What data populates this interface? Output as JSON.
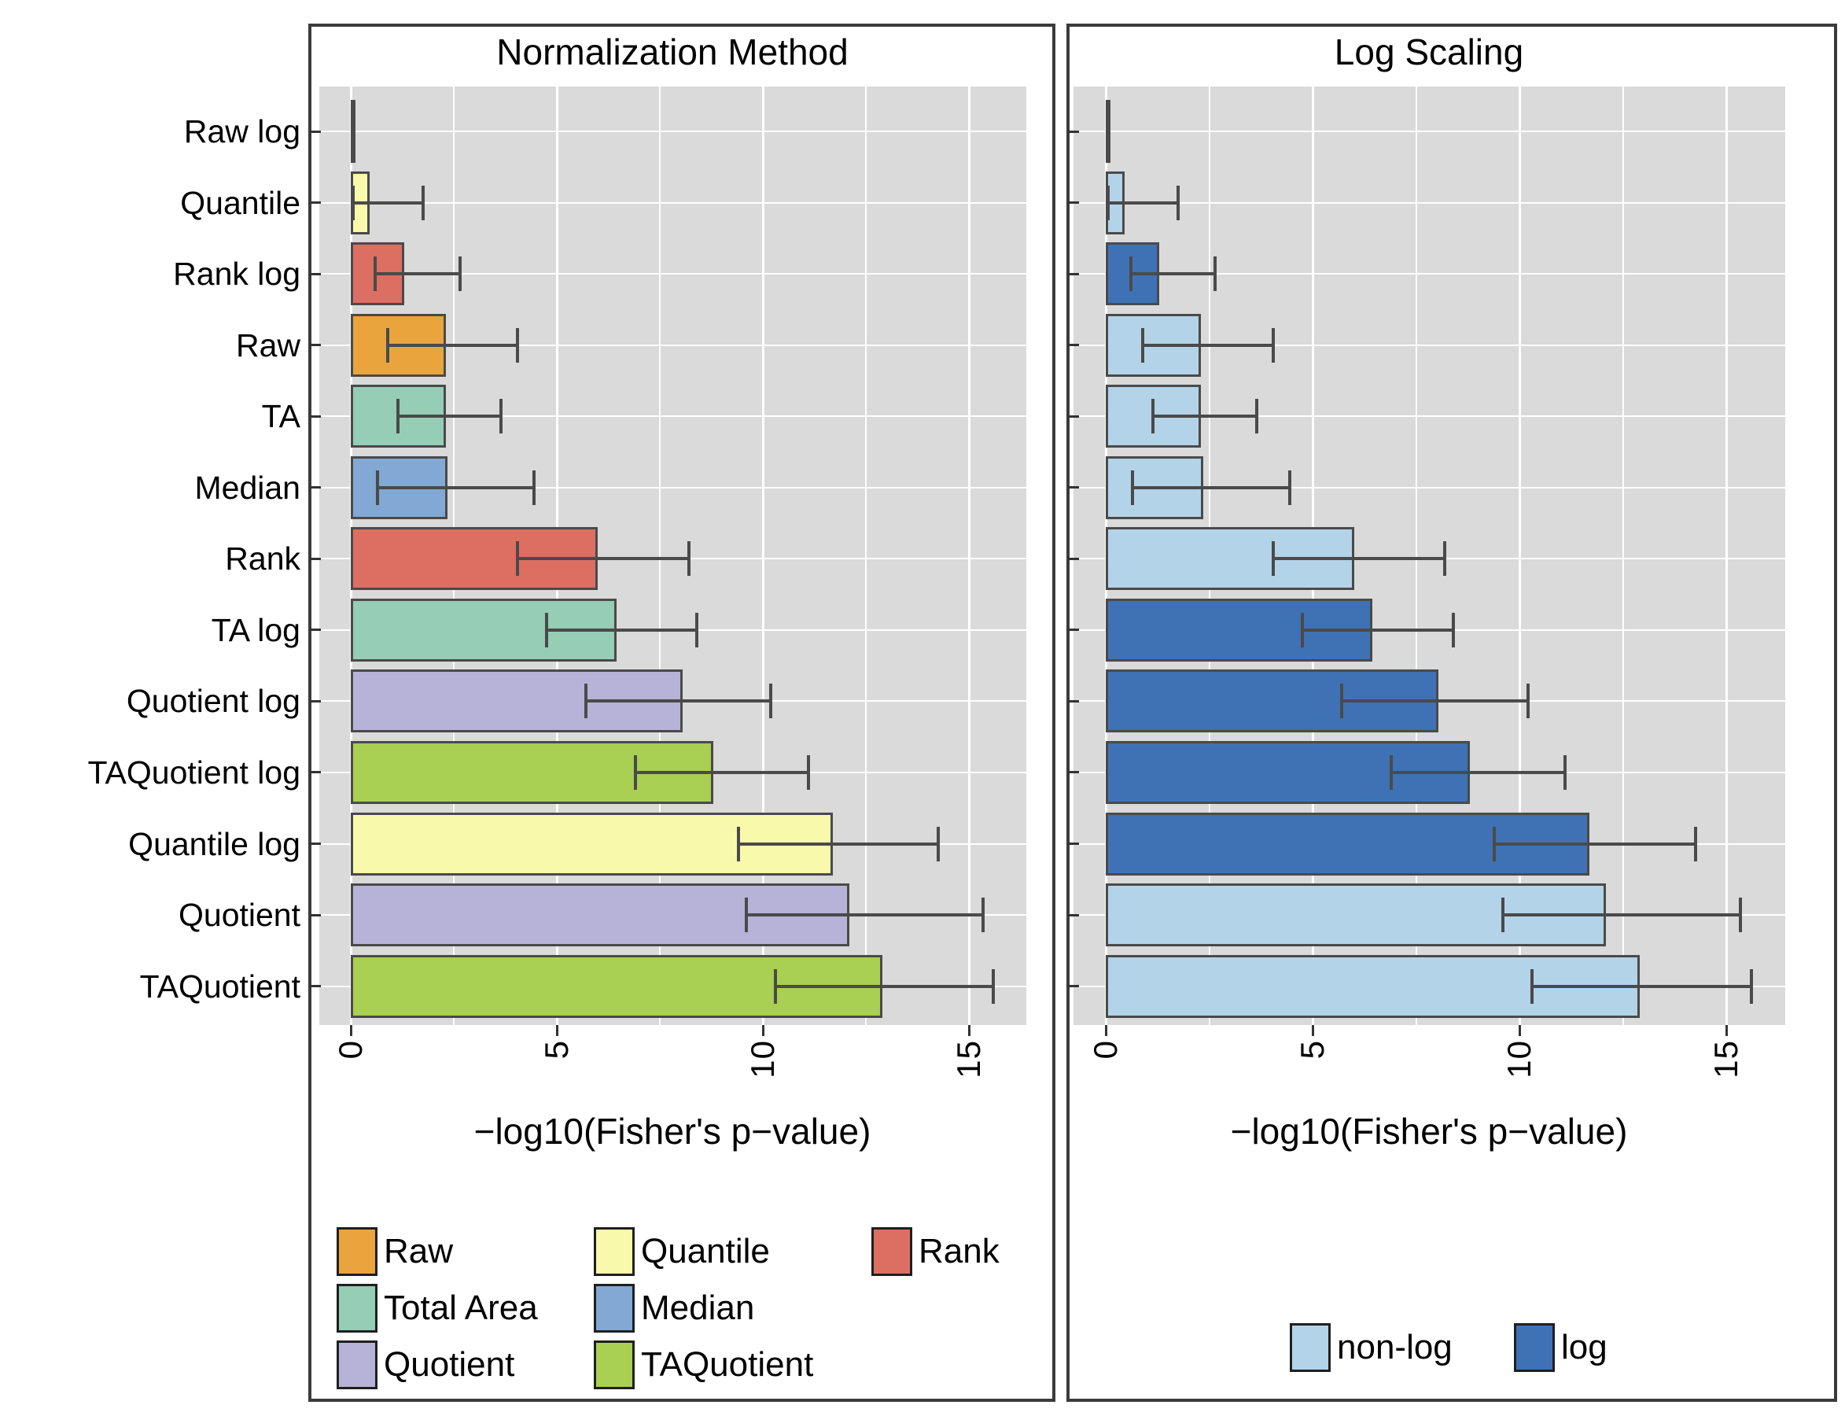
{
  "styles": {
    "panel_bg": "#dadada",
    "grid_color": "#ffffff",
    "bar_border": "#4a4a4a",
    "errorbar_color": "#4a4a4a",
    "box_border": "#3b3b3b",
    "tick_color": "#333333",
    "text_color": "#000000"
  },
  "palette": {
    "raw": "#e9a43e",
    "quantile": "#f9f9ac",
    "rank": "#dc6f62",
    "total_area": "#95cdb6",
    "median": "#81a9d3",
    "quotient": "#b7b2d7",
    "taquotient": "#a9cf53",
    "nonlog": "#b3d3e9",
    "log": "#3e72b5"
  },
  "chart_data": [
    {
      "type": "bar",
      "orientation": "horizontal",
      "title": "Normalization Method",
      "xlabel": "−log10(Fisher's p−value)",
      "xlim": [
        0,
        16.4
      ],
      "xticks": [
        0,
        5,
        10,
        15
      ],
      "minor_gridlines": [
        2.5,
        7.5,
        12.5
      ],
      "grid": true,
      "legend_position": "bottom",
      "categories": [
        "Raw log",
        "Quantile",
        "Rank log",
        "Raw",
        "TA",
        "Median",
        "Rank",
        "TA log",
        "Quotient log",
        "TAQuotient log",
        "Quantile log",
        "Quotient",
        "TAQuotient"
      ],
      "values": [
        0.05,
        0.45,
        1.3,
        2.3,
        2.3,
        2.35,
        6.0,
        6.45,
        8.05,
        8.8,
        11.7,
        12.1,
        12.9
      ],
      "error_low": [
        null,
        0.05,
        0.6,
        0.9,
        1.15,
        0.65,
        4.05,
        4.75,
        5.7,
        6.9,
        9.4,
        9.6,
        10.3
      ],
      "error_high": [
        null,
        1.75,
        2.65,
        4.05,
        3.65,
        4.45,
        8.2,
        8.4,
        10.2,
        11.1,
        14.25,
        15.35,
        15.6
      ],
      "color_keys": [
        "raw",
        "quantile",
        "rank",
        "raw",
        "total_area",
        "median",
        "rank",
        "total_area",
        "quotient",
        "taquotient",
        "quantile",
        "quotient",
        "taquotient"
      ],
      "legend": [
        {
          "label": "Raw",
          "color_key": "raw"
        },
        {
          "label": "Quantile",
          "color_key": "quantile"
        },
        {
          "label": "Rank",
          "color_key": "rank"
        },
        {
          "label": "Total Area",
          "color_key": "total_area"
        },
        {
          "label": "Median",
          "color_key": "median"
        },
        {
          "label": "Quotient",
          "color_key": "quotient"
        },
        {
          "label": "TAQuotient",
          "color_key": "taquotient"
        }
      ]
    },
    {
      "type": "bar",
      "orientation": "horizontal",
      "title": "Log Scaling",
      "xlabel": "−log10(Fisher's p−value)",
      "xlim": [
        0,
        16.4
      ],
      "xticks": [
        0,
        5,
        10,
        15
      ],
      "minor_gridlines": [
        2.5,
        7.5,
        12.5
      ],
      "grid": true,
      "legend_position": "bottom",
      "categories": [
        "Raw log",
        "Quantile",
        "Rank log",
        "Raw",
        "TA",
        "Median",
        "Rank",
        "TA log",
        "Quotient log",
        "TAQuotient log",
        "Quantile log",
        "Quotient",
        "TAQuotient"
      ],
      "values": [
        0.05,
        0.45,
        1.3,
        2.3,
        2.3,
        2.35,
        6.0,
        6.45,
        8.05,
        8.8,
        11.7,
        12.1,
        12.9
      ],
      "error_low": [
        null,
        0.05,
        0.6,
        0.9,
        1.15,
        0.65,
        4.05,
        4.75,
        5.7,
        6.9,
        9.4,
        9.6,
        10.3
      ],
      "error_high": [
        null,
        1.75,
        2.65,
        4.05,
        3.65,
        4.45,
        8.2,
        8.4,
        10.2,
        11.1,
        14.25,
        15.35,
        15.6
      ],
      "color_keys": [
        "log",
        "nonlog",
        "log",
        "nonlog",
        "nonlog",
        "nonlog",
        "nonlog",
        "log",
        "log",
        "log",
        "log",
        "nonlog",
        "nonlog"
      ],
      "legend": [
        {
          "label": "non-log",
          "color_key": "nonlog"
        },
        {
          "label": "log",
          "color_key": "log"
        }
      ]
    }
  ]
}
